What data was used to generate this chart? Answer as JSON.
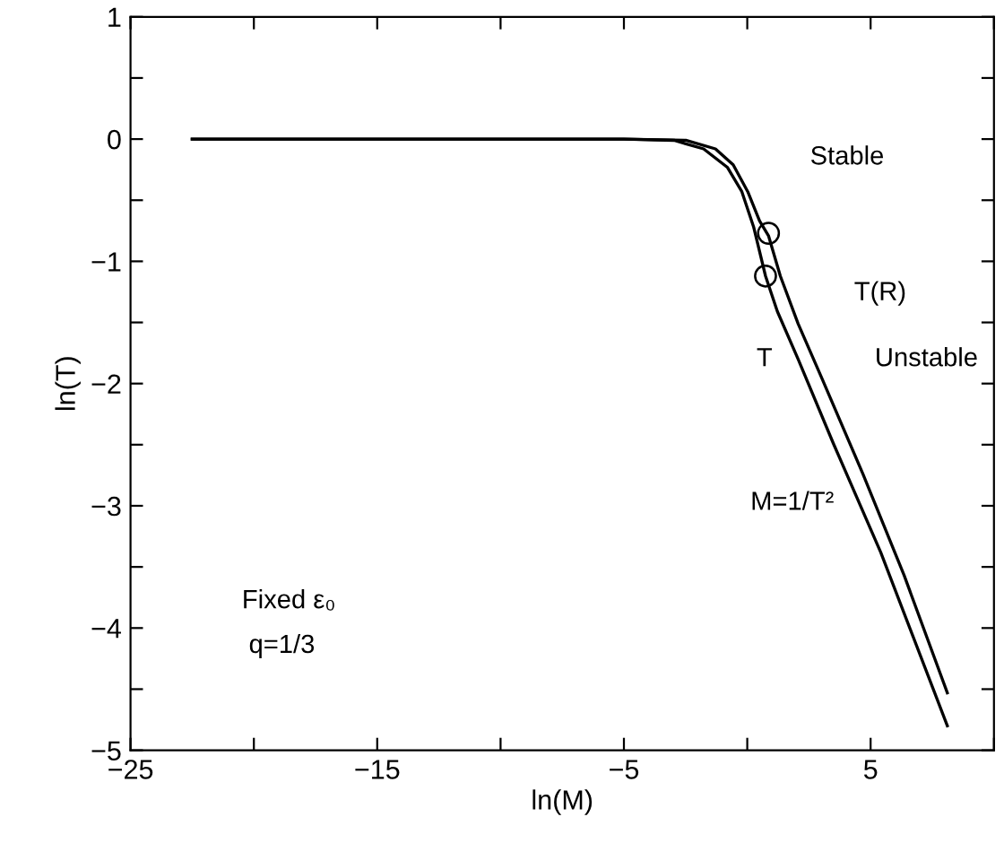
{
  "chart_data": {
    "type": "line",
    "xlabel": "ln(M)",
    "ylabel": "ln(T)",
    "xlim": [
      -25,
      10
    ],
    "ylim": [
      -5,
      1
    ],
    "xticks": [
      -25,
      {
        "value": -20,
        "label": null
      },
      -15,
      {
        "value": -10,
        "label": null
      },
      -5,
      {
        "value": 0,
        "label": null
      },
      5,
      {
        "value": 10,
        "label": null
      }
    ],
    "yticks": [
      -5,
      {
        "value": -4.5,
        "label": null
      },
      -4,
      {
        "value": -3.5,
        "label": null
      },
      -3,
      {
        "value": -2.5,
        "label": null
      },
      -2,
      {
        "value": -1.5,
        "label": null
      },
      -1,
      {
        "value": -0.5,
        "label": null
      },
      0,
      {
        "value": 0.5,
        "label": null
      },
      1
    ],
    "grid": false,
    "legend": false,
    "marker": "none",
    "line_style": "solid",
    "series": [
      {
        "color": "#000000",
        "x": [
          -22.5,
          -10,
          -5,
          -2.49,
          -1.29,
          -0.57,
          0.02,
          0.5,
          0.86,
          1.34,
          2.06,
          3.01,
          4.69,
          6.36,
          8.11
        ],
        "values": [
          0,
          0,
          0,
          -0.01,
          -0.08,
          -0.21,
          -0.43,
          -0.67,
          -0.79,
          -1.12,
          -1.51,
          -1.95,
          -2.74,
          -3.57,
          -4.53
        ]
      },
      {
        "color": "#000000",
        "x": [
          -22.5,
          -10,
          -5,
          -2.97,
          -1.77,
          -0.81,
          -0.22,
          0.26,
          0.74,
          1.22,
          2.06,
          3.49,
          5.41,
          8.11
        ],
        "values": [
          0,
          0,
          -0.0,
          -0.01,
          -0.08,
          -0.23,
          -0.43,
          -0.72,
          -1.12,
          -1.41,
          -1.8,
          -2.49,
          -3.38,
          -4.8
        ]
      },
      {
        "type": "scatter",
        "marker": "circle",
        "color": "#000000",
        "x": [
          0.86,
          0.74
        ],
        "values": [
          -0.77,
          -1.12
        ]
      }
    ],
    "annotations": [
      "Stable",
      "T(R)",
      "T",
      "Unstable",
      "M=1/T²",
      "Fixed ε₀",
      "q=1/3"
    ]
  }
}
